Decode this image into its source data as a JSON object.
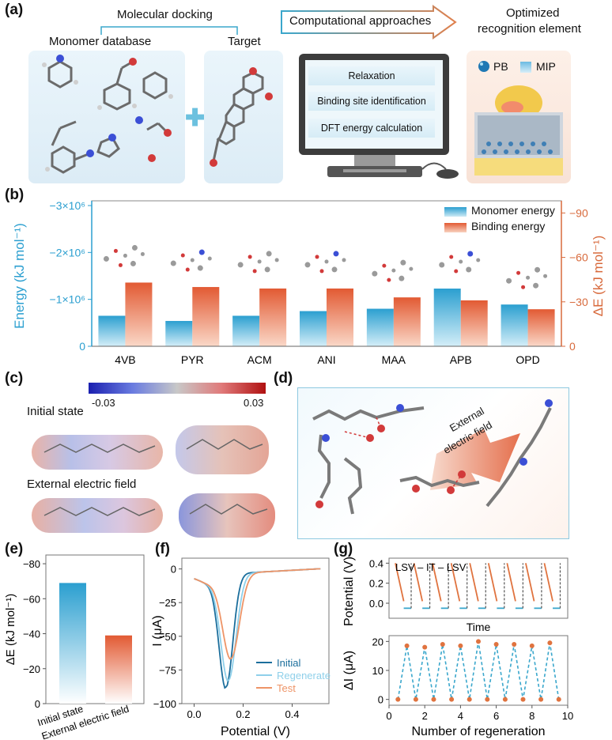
{
  "panel_a": {
    "letter": "(a)",
    "molecular_docking": "Molecular docking",
    "monomer_database": "Monomer database",
    "target": "Target",
    "computational_approaches": "Computational approaches",
    "optimized_line1": "Optimized",
    "optimized_line2": "recognition element",
    "steps": [
      "Relaxation",
      "Binding site identification",
      "DFT energy calculation"
    ],
    "legend_pb": "PB",
    "legend_mip": "MIP"
  },
  "panel_b": {
    "letter": "(b)",
    "legend_monomer": "Monomer energy",
    "legend_binding": "Binding energy"
  },
  "panel_c": {
    "letter": "(c)",
    "scale_min": "-0.03",
    "scale_max": "0.03",
    "initial_state": "Initial state",
    "external_field": "External electric field"
  },
  "panel_d": {
    "letter": "(d)",
    "arrow_label_line1": "External",
    "arrow_label_line2": "electric field"
  },
  "panel_e": {
    "letter": "(e)"
  },
  "panel_f": {
    "letter": "(f)"
  },
  "panel_g": {
    "letter": "(g)",
    "sequence_label": "LSV – IT – LSV",
    "time_label": "Time"
  },
  "chart_data": [
    {
      "type": "bar",
      "id": "b",
      "categories": [
        "4VB",
        "PYR",
        "ACM",
        "ANI",
        "MAA",
        "APB",
        "OPD"
      ],
      "series": [
        {
          "name": "Monomer energy",
          "axis": "left",
          "values": [
            -650000,
            -540000,
            -650000,
            -750000,
            -800000,
            -1230000,
            -890000
          ]
        },
        {
          "name": "Binding energy",
          "axis": "right",
          "values": [
            -43,
            -40,
            -39,
            -39,
            -33,
            -31,
            -25
          ]
        }
      ],
      "ylabel_left": "Energy (kJ mol⁻¹)",
      "ylabel_right": "ΔE (kJ mol⁻¹)",
      "ylim_left": [
        0,
        -3000000
      ],
      "ylim_right": [
        0,
        -95
      ],
      "yticks_left": [
        "0",
        "−1×10⁶",
        "−2×10⁶",
        "−3×10⁶"
      ],
      "yticks_right": [
        "0",
        "−30",
        "−60",
        "−90"
      ],
      "legend": "top-right"
    },
    {
      "type": "bar",
      "id": "e",
      "categories": [
        "Initial state",
        "External electric field"
      ],
      "values": [
        -69,
        -39
      ],
      "ylabel": "ΔE (kJ mol⁻¹)",
      "ylim": [
        0,
        -85
      ],
      "yticks": [
        "0",
        "−20",
        "−40",
        "−60",
        "−80"
      ]
    },
    {
      "type": "line",
      "id": "f",
      "xlabel": "Potential (V)",
      "ylabel": "I (μA)",
      "xlim": [
        -0.05,
        0.55
      ],
      "ylim": [
        -100,
        8
      ],
      "xticks": [
        "0.0",
        "0.2",
        "0.4"
      ],
      "yticks": [
        "0",
        "−25",
        "−50",
        "−75",
        "−100"
      ],
      "series": [
        {
          "name": "Initial",
          "color": "#1b6e9c",
          "peak_x": 0.13,
          "peak_y": -84
        },
        {
          "name": "Regenerate",
          "color": "#8fd0ea",
          "peak_x": 0.14,
          "peak_y": -79
        },
        {
          "name": "Test",
          "color": "#ee9467",
          "peak_x": 0.15,
          "peak_y": -63
        }
      ],
      "legend": "bottom-right"
    },
    {
      "type": "line",
      "id": "g_top",
      "ylabel": "Potential (V)",
      "xlabel": "Time",
      "ylim": [
        -0.15,
        0.45
      ],
      "yticks": [
        "0.0",
        "0.2",
        "0.4"
      ],
      "cycles": 9
    },
    {
      "type": "line",
      "id": "g_bottom",
      "xlabel": "Number of regeneration",
      "ylabel": "ΔI (μA)",
      "xlim": [
        0,
        10
      ],
      "ylim": [
        -2,
        22
      ],
      "xticks": [
        "0",
        "2",
        "4",
        "6",
        "8",
        "10"
      ],
      "yticks": [
        "0",
        "10",
        "20"
      ],
      "x": [
        0.5,
        1,
        1.5,
        2,
        2.5,
        3,
        3.5,
        4,
        4.5,
        5,
        5.5,
        6,
        6.5,
        7,
        7.5,
        8,
        8.5,
        9,
        9.5
      ],
      "y": [
        0,
        18.5,
        0,
        18.0,
        0,
        19.0,
        0,
        18.5,
        0,
        20.0,
        0,
        19.0,
        0,
        19.0,
        0,
        18.5,
        0,
        19.5,
        0
      ]
    }
  ]
}
